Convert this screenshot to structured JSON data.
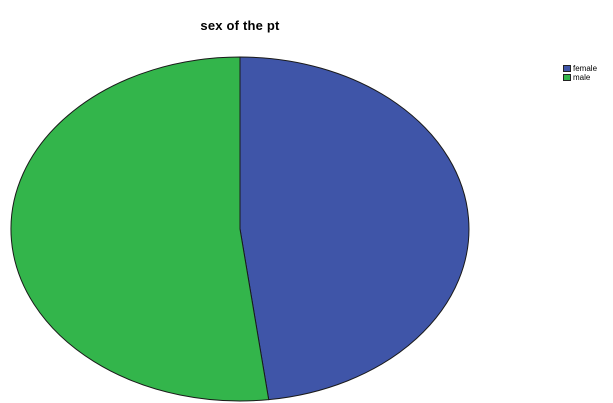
{
  "chart_data": {
    "type": "pie",
    "title": "sex of the pt",
    "categories": [
      "female",
      "male"
    ],
    "values": [
      48,
      52
    ],
    "colors": [
      "#3f55a8",
      "#33b54b"
    ],
    "legend": {
      "placement": "top-right",
      "entries": [
        "female",
        "male"
      ]
    }
  }
}
